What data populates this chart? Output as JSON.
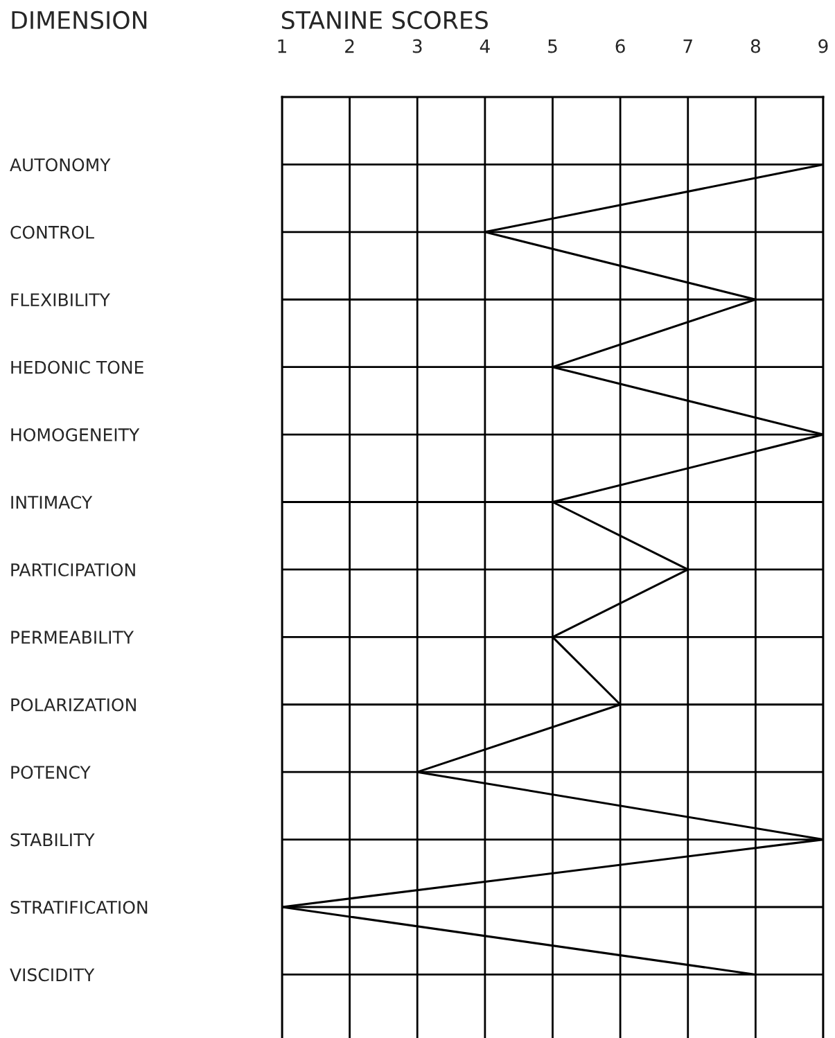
{
  "chart_data": {
    "type": "line",
    "orientation": "horizontal",
    "title": "STANINE SCORES",
    "ylabel": "DIMENSION",
    "categories": [
      "AUTONOMY",
      "CONTROL",
      "FLEXIBILITY",
      "HEDONIC TONE",
      "HOMOGENEITY",
      "INTIMACY",
      "PARTICIPATION",
      "PERMEABILITY",
      "POLARIZATION",
      "POTENCY",
      "STABILITY",
      "STRATIFICATION",
      "VISCIDITY"
    ],
    "series": [
      {
        "color": "#000000",
        "values": [
          9,
          4,
          8,
          5,
          9,
          5,
          7,
          5,
          6,
          3,
          9,
          1,
          8
        ]
      }
    ],
    "xlim": [
      1,
      9
    ],
    "xticks": [
      1,
      2,
      3,
      4,
      5,
      6,
      7,
      8,
      9
    ],
    "grid": true,
    "marker": "none",
    "line_style": "solid"
  }
}
